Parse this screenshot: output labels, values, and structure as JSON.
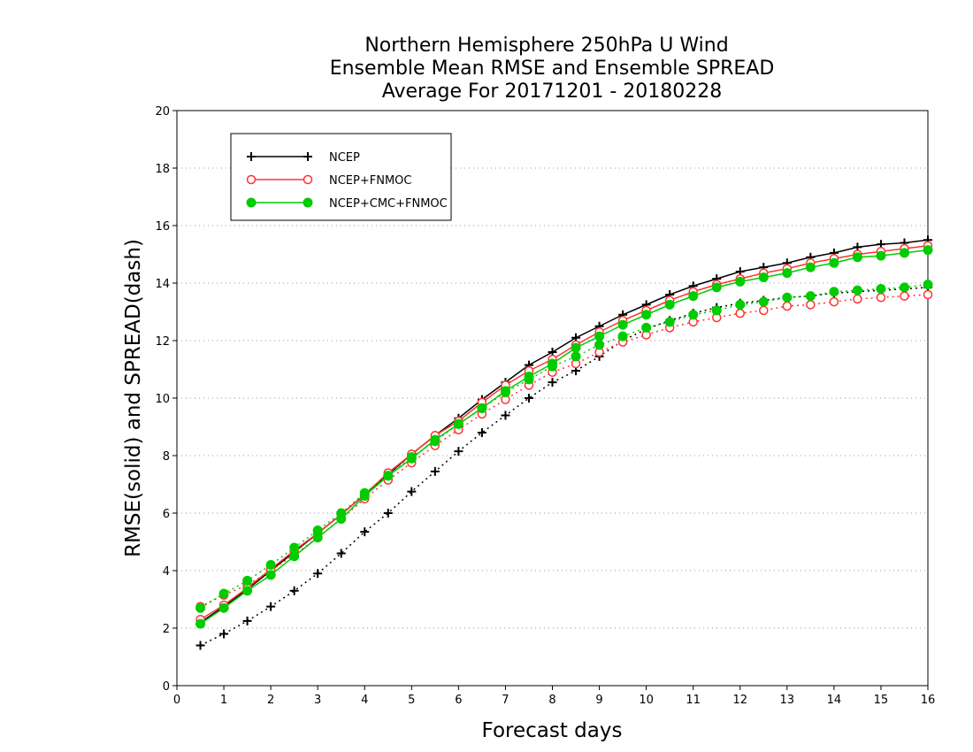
{
  "chart_data": {
    "type": "line",
    "title": [
      "Northern Hemisphere 250hPa U Wind",
      "Ensemble Mean RMSE and Ensemble SPREAD",
      "Average For 20171201 - 20180228"
    ],
    "xlabel": "Forecast days",
    "ylabel": "RMSE(solid) and SPREAD(dash)",
    "xlim": [
      0,
      16
    ],
    "ylim": [
      0,
      20
    ],
    "xticks": [
      "0",
      "1",
      "2",
      "3",
      "4",
      "5",
      "6",
      "7",
      "8",
      "9",
      "10",
      "11",
      "12",
      "13",
      "14",
      "15",
      "16"
    ],
    "yticks": [
      "0",
      "2",
      "4",
      "6",
      "8",
      "10",
      "12",
      "14",
      "16",
      "18",
      "20"
    ],
    "grid": "horizontal dotted",
    "legend_position": "top-left",
    "x": [
      0.5,
      1,
      1.5,
      2,
      2.5,
      3,
      3.5,
      4,
      4.5,
      5,
      5.5,
      6,
      6.5,
      7,
      7.5,
      8,
      8.5,
      9,
      9.5,
      10,
      10.5,
      11,
      11.5,
      12,
      12.5,
      13,
      13.5,
      14,
      14.5,
      15,
      15.5,
      16
    ],
    "series": [
      {
        "name": "NCEP",
        "color": "#000000",
        "marker": "plus",
        "rmse": [
          2.2,
          2.75,
          3.35,
          4.0,
          4.65,
          5.3,
          5.95,
          6.65,
          7.35,
          8.05,
          8.7,
          9.3,
          9.95,
          10.55,
          11.15,
          11.6,
          12.1,
          12.5,
          12.9,
          13.25,
          13.6,
          13.9,
          14.15,
          14.4,
          14.55,
          14.7,
          14.9,
          15.05,
          15.25,
          15.35,
          15.4,
          15.5
        ],
        "spread": [
          1.4,
          1.8,
          2.25,
          2.75,
          3.3,
          3.9,
          4.6,
          5.35,
          6.0,
          6.75,
          7.45,
          8.15,
          8.8,
          9.4,
          10.0,
          10.55,
          10.95,
          11.45,
          12.0,
          12.4,
          12.7,
          12.95,
          13.15,
          13.3,
          13.4,
          13.5,
          13.55,
          13.65,
          13.7,
          13.75,
          13.8,
          13.85
        ]
      },
      {
        "name": "NCEP+FNMOC",
        "color": "#ff3333",
        "marker": "open-circle",
        "rmse": [
          2.3,
          2.8,
          3.4,
          4.05,
          4.7,
          5.3,
          5.95,
          6.65,
          7.4,
          8.05,
          8.7,
          9.2,
          9.85,
          10.45,
          10.95,
          11.35,
          11.85,
          12.3,
          12.7,
          13.05,
          13.4,
          13.7,
          13.95,
          14.15,
          14.35,
          14.5,
          14.7,
          14.85,
          15.0,
          15.1,
          15.2,
          15.3
        ],
        "spread": [
          2.75,
          3.15,
          3.5,
          4.0,
          4.55,
          5.15,
          5.8,
          6.5,
          7.15,
          7.75,
          8.35,
          8.9,
          9.45,
          9.95,
          10.45,
          10.9,
          11.2,
          11.6,
          11.95,
          12.2,
          12.45,
          12.65,
          12.8,
          12.95,
          13.05,
          13.2,
          13.25,
          13.35,
          13.45,
          13.5,
          13.55,
          13.6
        ]
      },
      {
        "name": "NCEP+CMC+FNMOC",
        "color": "#00cc00",
        "marker": "filled-circle",
        "rmse": [
          2.15,
          2.7,
          3.3,
          3.85,
          4.5,
          5.15,
          5.8,
          6.6,
          7.3,
          7.9,
          8.55,
          9.1,
          9.65,
          10.25,
          10.75,
          11.2,
          11.75,
          12.15,
          12.55,
          12.9,
          13.25,
          13.55,
          13.85,
          14.05,
          14.2,
          14.35,
          14.55,
          14.7,
          14.9,
          14.95,
          15.05,
          15.15
        ],
        "spread": [
          2.7,
          3.2,
          3.65,
          4.2,
          4.8,
          5.4,
          6.0,
          6.7,
          7.3,
          7.95,
          8.5,
          9.1,
          9.65,
          10.2,
          10.65,
          11.1,
          11.45,
          11.85,
          12.15,
          12.45,
          12.65,
          12.9,
          13.05,
          13.25,
          13.35,
          13.5,
          13.55,
          13.7,
          13.75,
          13.8,
          13.85,
          13.95
        ]
      }
    ]
  }
}
